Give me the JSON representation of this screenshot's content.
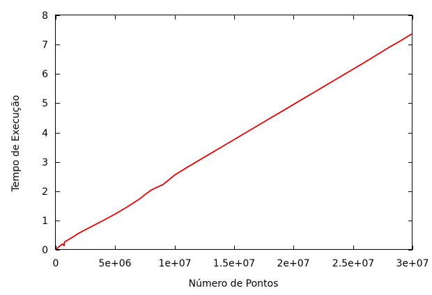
{
  "chart_data": {
    "type": "line",
    "title": "",
    "xlabel": "Número de Pontos",
    "ylabel": "Tempo de Execução",
    "xlim": [
      0,
      30000000
    ],
    "ylim": [
      0,
      8
    ],
    "grid": false,
    "legend": "none",
    "x_ticks": [
      {
        "value": 0,
        "label": "0"
      },
      {
        "value": 5000000,
        "label": "5e+06"
      },
      {
        "value": 10000000,
        "label": "1e+07"
      },
      {
        "value": 15000000,
        "label": "1.5e+07"
      },
      {
        "value": 20000000,
        "label": "2e+07"
      },
      {
        "value": 25000000,
        "label": "2.5e+07"
      },
      {
        "value": 30000000,
        "label": "3e+07"
      }
    ],
    "y_ticks": [
      {
        "value": 0,
        "label": "0"
      },
      {
        "value": 1,
        "label": "1"
      },
      {
        "value": 2,
        "label": "2"
      },
      {
        "value": 3,
        "label": "3"
      },
      {
        "value": 4,
        "label": "4"
      },
      {
        "value": 5,
        "label": "5"
      },
      {
        "value": 6,
        "label": "6"
      },
      {
        "value": 7,
        "label": "7"
      },
      {
        "value": 8,
        "label": "8"
      }
    ],
    "series": [
      {
        "color": "#e00000",
        "x": [
          0,
          200000,
          400000,
          600000,
          700000,
          750000,
          800000,
          1000000,
          1500000,
          2000000,
          3000000,
          4000000,
          5000000,
          6000000,
          7000000,
          7500000,
          8000000,
          8500000,
          9000000,
          9500000,
          10000000,
          11000000,
          12000000,
          13000000,
          14000000,
          15000000,
          16000000,
          17000000,
          18000000,
          19000000,
          20000000,
          21000000,
          22000000,
          23000000,
          24000000,
          25000000,
          26000000,
          27000000,
          28000000,
          29000000,
          30000000
        ],
        "y": [
          0,
          0.08,
          0.15,
          0.2,
          0.14,
          0.27,
          0.28,
          0.33,
          0.45,
          0.58,
          0.79,
          1.0,
          1.22,
          1.46,
          1.72,
          1.88,
          2.03,
          2.13,
          2.22,
          2.38,
          2.55,
          2.8,
          3.04,
          3.28,
          3.52,
          3.76,
          4.0,
          4.24,
          4.48,
          4.72,
          4.96,
          5.2,
          5.44,
          5.68,
          5.92,
          6.16,
          6.4,
          6.65,
          6.9,
          7.13,
          7.38
        ]
      }
    ]
  }
}
